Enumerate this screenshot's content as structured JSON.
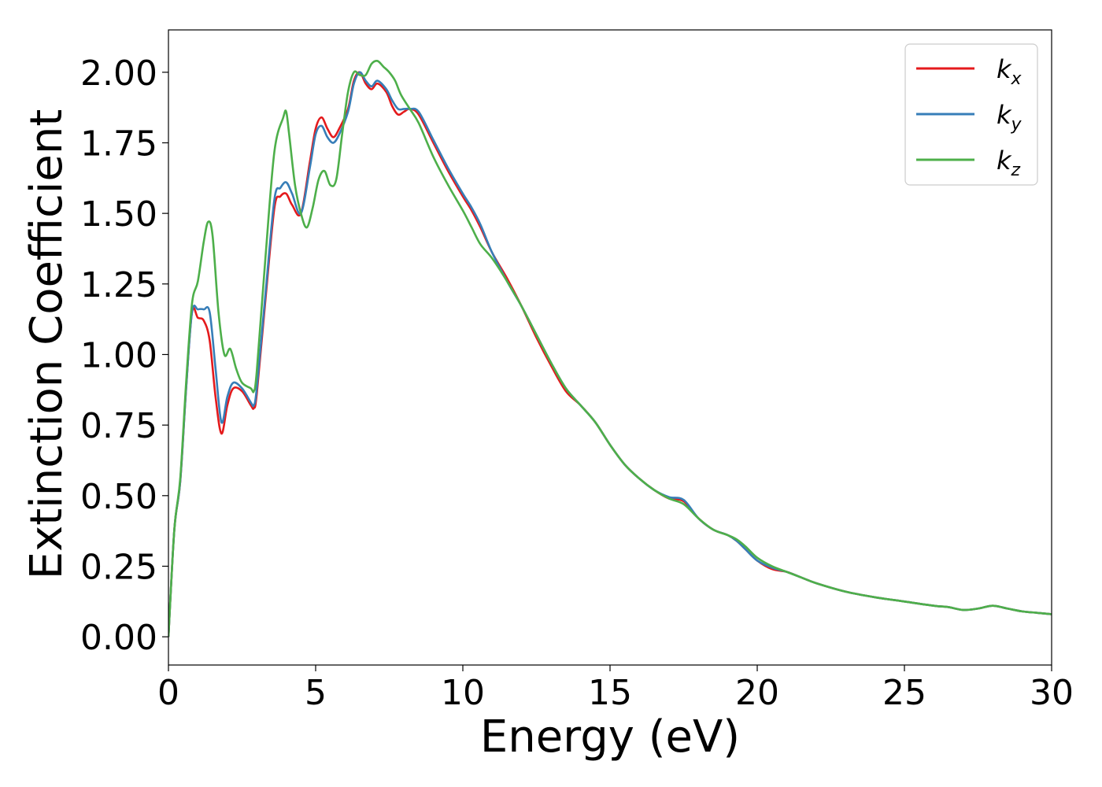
{
  "chart_data": {
    "type": "line",
    "xlabel": "Energy (eV)",
    "ylabel": "Extinction Coefficient",
    "xlim": [
      0,
      30
    ],
    "ylim": [
      -0.1,
      2.15
    ],
    "xticks": [
      0,
      5,
      10,
      15,
      20,
      25,
      30
    ],
    "xtick_labels": [
      "0",
      "5",
      "10",
      "15",
      "20",
      "25",
      "30"
    ],
    "yticks": [
      0.0,
      0.25,
      0.5,
      0.75,
      1.0,
      1.25,
      1.5,
      1.75,
      2.0
    ],
    "ytick_labels": [
      "0.00",
      "0.25",
      "0.50",
      "0.75",
      "1.00",
      "1.25",
      "1.50",
      "1.75",
      "2.00"
    ],
    "grid": false,
    "legend_position": "top-right",
    "series": [
      {
        "name": "k_x",
        "label_base": "k",
        "label_sub": "x",
        "color": "#e41a1c",
        "x": [
          0,
          0.2,
          0.4,
          0.6,
          0.8,
          1.0,
          1.2,
          1.4,
          1.6,
          1.8,
          2.0,
          2.2,
          2.5,
          2.8,
          2.9,
          3.0,
          3.3,
          3.6,
          3.8,
          4.0,
          4.2,
          4.5,
          4.8,
          5.0,
          5.2,
          5.4,
          5.6,
          5.8,
          6.1,
          6.3,
          6.5,
          6.7,
          6.9,
          7.1,
          7.4,
          7.6,
          7.8,
          8.0,
          8.2,
          8.5,
          9.0,
          9.5,
          10.0,
          10.3,
          10.6,
          11.0,
          11.5,
          12.0,
          12.5,
          13.0,
          13.5,
          14.0,
          14.5,
          15.0,
          15.5,
          16.0,
          16.5,
          17.0,
          17.5,
          18.0,
          18.5,
          19.0,
          19.3,
          19.6,
          20.0,
          20.5,
          21.0,
          21.5,
          22.0,
          23.0,
          24.0,
          25.0,
          26.0,
          26.5,
          27.0,
          27.5,
          28.0,
          28.5,
          29.0,
          29.5,
          30.0
        ],
        "y": [
          0.0,
          0.38,
          0.55,
          0.88,
          1.15,
          1.13,
          1.12,
          1.05,
          0.85,
          0.72,
          0.82,
          0.88,
          0.87,
          0.82,
          0.81,
          0.86,
          1.2,
          1.52,
          1.56,
          1.57,
          1.53,
          1.5,
          1.68,
          1.8,
          1.84,
          1.8,
          1.77,
          1.8,
          1.87,
          1.97,
          2.0,
          1.96,
          1.94,
          1.96,
          1.93,
          1.88,
          1.85,
          1.86,
          1.87,
          1.85,
          1.75,
          1.65,
          1.56,
          1.51,
          1.45,
          1.36,
          1.27,
          1.17,
          1.06,
          0.96,
          0.87,
          0.82,
          0.76,
          0.68,
          0.61,
          0.56,
          0.52,
          0.49,
          0.48,
          0.42,
          0.38,
          0.36,
          0.34,
          0.31,
          0.27,
          0.24,
          0.23,
          0.21,
          0.19,
          0.16,
          0.14,
          0.125,
          0.11,
          0.105,
          0.095,
          0.1,
          0.11,
          0.1,
          0.09,
          0.085,
          0.08
        ]
      },
      {
        "name": "k_y",
        "label_base": "k",
        "label_sub": "y",
        "color": "#377eb8",
        "x": [
          0,
          0.2,
          0.4,
          0.6,
          0.8,
          1.0,
          1.2,
          1.4,
          1.6,
          1.8,
          2.0,
          2.2,
          2.5,
          2.8,
          2.9,
          3.0,
          3.3,
          3.6,
          3.8,
          4.0,
          4.2,
          4.5,
          4.8,
          5.0,
          5.2,
          5.4,
          5.6,
          5.8,
          6.1,
          6.3,
          6.5,
          6.7,
          6.9,
          7.1,
          7.4,
          7.6,
          7.8,
          8.0,
          8.2,
          8.5,
          9.0,
          9.5,
          10.0,
          10.3,
          10.6,
          11.0,
          11.5,
          12.0,
          12.5,
          13.0,
          13.5,
          14.0,
          14.5,
          15.0,
          15.5,
          16.0,
          16.5,
          17.0,
          17.5,
          18.0,
          18.5,
          19.0,
          19.3,
          19.6,
          20.0,
          20.5,
          21.0,
          21.5,
          22.0,
          23.0,
          24.0,
          25.0,
          26.0,
          26.5,
          27.0,
          27.5,
          28.0,
          28.5,
          29.0,
          29.5,
          30.0
        ],
        "y": [
          0.0,
          0.38,
          0.55,
          0.88,
          1.15,
          1.16,
          1.16,
          1.15,
          0.95,
          0.76,
          0.85,
          0.9,
          0.88,
          0.83,
          0.82,
          0.88,
          1.22,
          1.55,
          1.59,
          1.61,
          1.57,
          1.5,
          1.66,
          1.78,
          1.81,
          1.77,
          1.75,
          1.78,
          1.86,
          1.96,
          2.0,
          1.97,
          1.95,
          1.97,
          1.94,
          1.9,
          1.87,
          1.87,
          1.87,
          1.86,
          1.76,
          1.66,
          1.57,
          1.52,
          1.46,
          1.36,
          1.26,
          1.17,
          1.07,
          0.97,
          0.88,
          0.82,
          0.76,
          0.68,
          0.61,
          0.56,
          0.52,
          0.495,
          0.485,
          0.42,
          0.38,
          0.36,
          0.34,
          0.31,
          0.27,
          0.245,
          0.23,
          0.21,
          0.19,
          0.16,
          0.14,
          0.125,
          0.11,
          0.105,
          0.095,
          0.1,
          0.11,
          0.1,
          0.09,
          0.085,
          0.08
        ]
      },
      {
        "name": "k_z",
        "label_base": "k",
        "label_sub": "z",
        "color": "#4daf4a",
        "x": [
          0,
          0.2,
          0.4,
          0.6,
          0.8,
          1.0,
          1.2,
          1.35,
          1.5,
          1.7,
          1.9,
          2.1,
          2.3,
          2.5,
          2.8,
          2.9,
          3.0,
          3.3,
          3.6,
          3.9,
          4.0,
          4.1,
          4.3,
          4.5,
          4.7,
          4.9,
          5.1,
          5.3,
          5.5,
          5.7,
          5.9,
          6.1,
          6.3,
          6.5,
          6.7,
          6.9,
          7.1,
          7.3,
          7.5,
          7.7,
          7.9,
          8.2,
          8.5,
          9.0,
          9.5,
          10.0,
          10.3,
          10.6,
          11.0,
          11.5,
          12.0,
          12.5,
          13.0,
          13.5,
          14.0,
          14.5,
          15.0,
          15.5,
          16.0,
          16.5,
          17.0,
          17.5,
          18.0,
          18.5,
          19.0,
          19.3,
          19.6,
          20.0,
          20.5,
          21.0,
          21.5,
          22.0,
          23.0,
          24.0,
          25.0,
          26.0,
          26.5,
          27.0,
          27.5,
          28.0,
          28.5,
          29.0,
          29.5,
          30.0
        ],
        "y": [
          0.0,
          0.38,
          0.56,
          0.9,
          1.18,
          1.26,
          1.4,
          1.47,
          1.42,
          1.15,
          1.0,
          1.02,
          0.95,
          0.9,
          0.88,
          0.87,
          0.94,
          1.35,
          1.72,
          1.84,
          1.86,
          1.78,
          1.6,
          1.5,
          1.45,
          1.52,
          1.62,
          1.65,
          1.6,
          1.62,
          1.78,
          1.93,
          2.0,
          1.99,
          1.99,
          2.03,
          2.04,
          2.02,
          2.0,
          1.97,
          1.92,
          1.87,
          1.82,
          1.7,
          1.6,
          1.51,
          1.45,
          1.39,
          1.34,
          1.26,
          1.17,
          1.07,
          0.97,
          0.88,
          0.82,
          0.76,
          0.68,
          0.61,
          0.56,
          0.52,
          0.49,
          0.47,
          0.42,
          0.38,
          0.36,
          0.345,
          0.32,
          0.28,
          0.25,
          0.23,
          0.21,
          0.19,
          0.16,
          0.14,
          0.125,
          0.11,
          0.105,
          0.095,
          0.1,
          0.11,
          0.1,
          0.09,
          0.085,
          0.08
        ]
      }
    ]
  }
}
